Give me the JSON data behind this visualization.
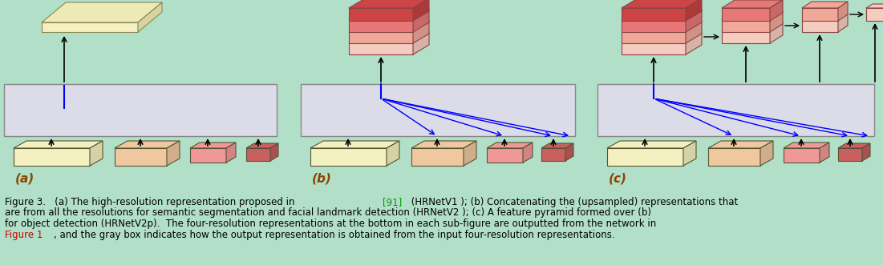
{
  "bg_color": "#b2dfc8",
  "fig_width": 11.01,
  "fig_height": 3.31,
  "caption_lines": [
    "Figure 3.   (a) The high-resolution representation proposed in [91] (HRNetV1 ); (b) Concatenating the (upsampled) representations that",
    "are from all the resolutions for semantic segmentation and facial landmark detection (HRNetV2 ); (c) A feature pyramid formed over (b)",
    "for object detection (HRNetV2p).  The four-resolution representations at the bottom in each sub-figure are outputted from the network in",
    "Figure 1, and the gray box indicates how the output representation is obtained from the input four-resolution representations."
  ],
  "caption_color": "#000000",
  "caption_fontsize": 8.5,
  "ref_color": "#009900",
  "fig1_color": "#cc0000",
  "subfig_labels": [
    "(a)",
    "(b)",
    "(c)"
  ],
  "subfig_label_color": "#8B4500",
  "subfig_label_fontsize": 11,
  "stack_colors_b": [
    "#f5ccc0",
    "#f0a898",
    "#e87878",
    "#cc4444"
  ],
  "stack_colors_c": [
    "#f5ccc0",
    "#f0a898",
    "#e87878",
    "#cc4444"
  ]
}
